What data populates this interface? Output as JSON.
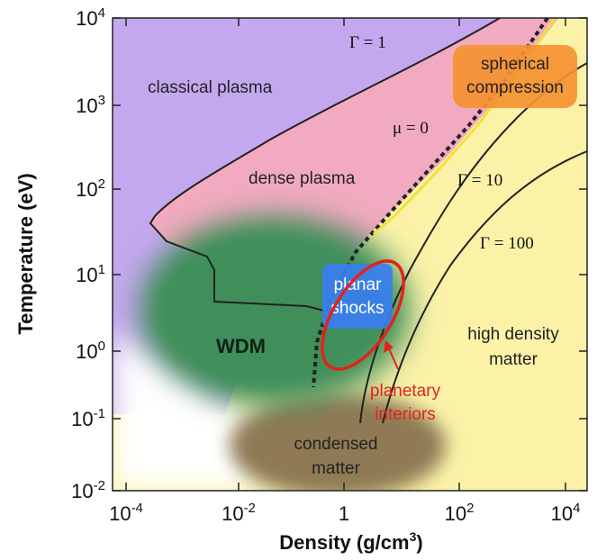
{
  "axes": {
    "x_title": "Density (g/cm",
    "x_title_sup": "3",
    "x_title_close": ")",
    "y_title": "Temperature (eV)",
    "x_ticks": [
      {
        "base": "10",
        "exp": "-4"
      },
      {
        "base": "10",
        "exp": "-2"
      },
      {
        "base": "1",
        "exp": ""
      },
      {
        "base": "10",
        "exp": "2"
      },
      {
        "base": "10",
        "exp": "4"
      }
    ],
    "y_ticks": [
      {
        "base": "10",
        "exp": "4"
      },
      {
        "base": "10",
        "exp": "3"
      },
      {
        "base": "10",
        "exp": "2"
      },
      {
        "base": "10",
        "exp": "1"
      },
      {
        "base": "10",
        "exp": "0"
      },
      {
        "base": "10",
        "exp": "-1"
      },
      {
        "base": "10",
        "exp": "-2"
      }
    ],
    "x_scale": "log",
    "y_scale": "log",
    "x_range": [
      "1e-5",
      "1e5"
    ],
    "y_range": [
      "1e-2",
      "1e4"
    ]
  },
  "regions": {
    "classical_plasma": "classical plasma",
    "dense_plasma": "dense plasma",
    "wdm": "WDM",
    "high_density_1": "high density",
    "high_density_2": "matter",
    "condensed_1": "condensed",
    "condensed_2": "matter",
    "spherical_1": "spherical",
    "spherical_2": "compression",
    "planar_1": "planar",
    "planar_2": "shocks",
    "planetary_1": "planetary",
    "planetary_2": "interiors"
  },
  "curves": {
    "gamma_1": "Γ = 1",
    "mu_0": "μ = 0",
    "gamma_10": "Γ = 10",
    "gamma_100": "Γ = 100"
  },
  "colors": {
    "classical_plasma": "#c4a8ef",
    "dense_plasma": "#f2aac0",
    "high_density": "#fbf2a8",
    "wdm": "#3f8f5a",
    "condensed": "#8f7a55",
    "spherical": "#f59231",
    "planar": "#3a7ff0",
    "planetary": "#e2231a",
    "boundary": "#222222"
  }
}
